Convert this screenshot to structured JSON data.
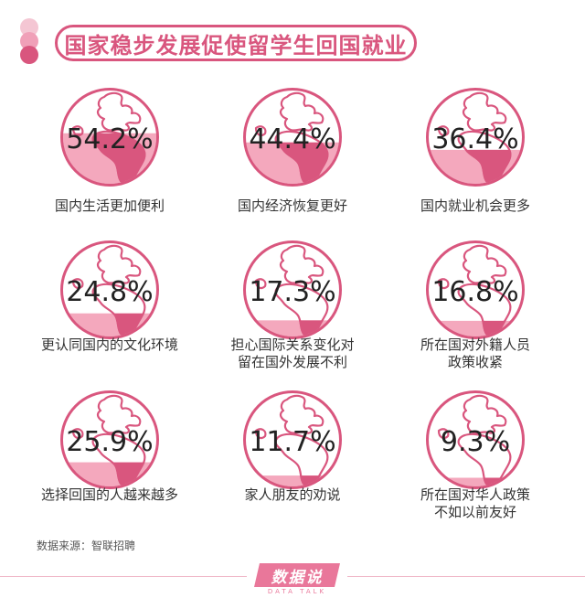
{
  "title": "国家稳步发展促使留学生回国就业",
  "source": "数据来源：智联招聘",
  "logo": {
    "name": "数据说",
    "sub": "DATA TALK"
  },
  "colors": {
    "accent": "#d9567e",
    "fill": "#f4a8bd",
    "globe_line": "#d9567e",
    "dots": [
      "#f4c6d3",
      "#f0a0b8",
      "#d9567e"
    ]
  },
  "chart_data": {
    "type": "bar",
    "categories": [
      "国内生活更加便利",
      "国内经济恢复更好",
      "国内就业机会更多",
      "更认同国内的文化环境",
      "担心国际关系变化对留在国外发展不利",
      "所在国对外籍人员政策收紧",
      "选择回国的人越来越多",
      "家人朋友的劝说",
      "所在国对华人政策不如以前友好"
    ],
    "label_lines": [
      [
        "国内生活更加便利"
      ],
      [
        "国内经济恢复更好"
      ],
      [
        "国内就业机会更多"
      ],
      [
        "更认同国内的文化环境"
      ],
      [
        "担心国际关系变化对",
        "留在国外发展不利"
      ],
      [
        "所在国对外籍人员",
        "政策收紧"
      ],
      [
        "选择回国的人越来越多"
      ],
      [
        "家人朋友的劝说"
      ],
      [
        "所在国对华人政策",
        "不如以前友好"
      ]
    ],
    "values": [
      54.2,
      44.4,
      36.4,
      24.8,
      17.3,
      16.8,
      25.9,
      11.7,
      9.3
    ],
    "value_labels": [
      "54.2%",
      "44.4%",
      "36.4%",
      "24.8%",
      "17.3%",
      "16.8%",
      "25.9%",
      "11.7%",
      "9.3%"
    ],
    "unit": "%",
    "ylim": [
      0,
      100
    ]
  }
}
